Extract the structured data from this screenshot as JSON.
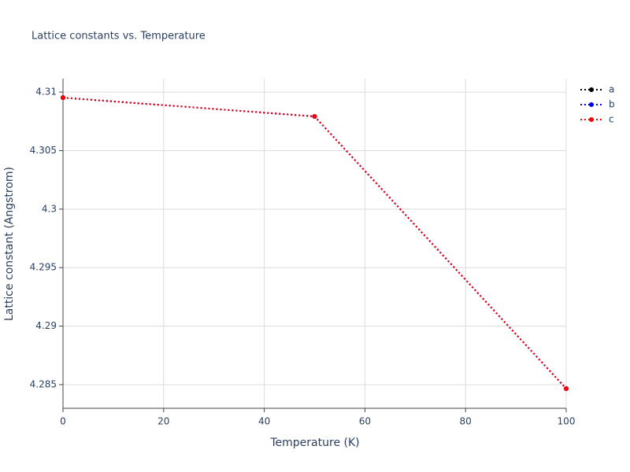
{
  "chart_data": {
    "type": "line",
    "title": "Lattice constants vs. Temperature",
    "x_label": "Temperature (K)",
    "y_label": "Lattice constant (Angstrom)",
    "x": [
      0,
      50,
      100
    ],
    "series": [
      {
        "name": "a",
        "color": "#000000",
        "values": [
          4.30953,
          4.30792,
          4.28466
        ]
      },
      {
        "name": "b",
        "color": "#0000ff",
        "values": [
          4.30953,
          4.30792,
          4.28466
        ]
      },
      {
        "name": "c",
        "color": "#ff0000",
        "values": [
          4.30953,
          4.30792,
          4.28466
        ]
      }
    ],
    "xlim": [
      0,
      100
    ],
    "xticks": [
      0,
      20,
      40,
      60,
      80,
      100
    ],
    "ylim": [
      4.28298,
      4.31115
    ],
    "yticks": [
      4.285,
      4.29,
      4.295,
      4.3,
      4.305,
      4.31
    ],
    "grid": true,
    "line_style": "dot",
    "legend": "right"
  }
}
